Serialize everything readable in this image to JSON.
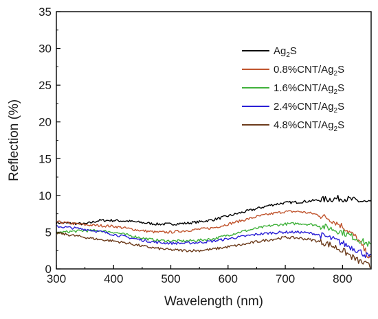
{
  "chart_data": {
    "type": "line",
    "xlabel": "Wavelength (nm)",
    "ylabel": "Reflection (%)",
    "xlim": [
      300,
      850
    ],
    "ylim": [
      0,
      35
    ],
    "x_ticks": [
      "300",
      "400",
      "500",
      "600",
      "700",
      "800"
    ],
    "y_ticks": [
      "0",
      "5",
      "10",
      "15",
      "20",
      "25",
      "30",
      "35"
    ],
    "legend_position": "top-right",
    "x": [
      300,
      325,
      350,
      375,
      400,
      425,
      450,
      475,
      500,
      525,
      550,
      575,
      600,
      625,
      650,
      675,
      700,
      725,
      750,
      775,
      800,
      825,
      850
    ],
    "series": [
      {
        "name": "Ag2S",
        "name_main": "Ag",
        "name_sub": "2",
        "name_tail": "S",
        "color": "#000000",
        "values": [
          6.3,
          6.2,
          6.1,
          6.6,
          6.6,
          6.5,
          6.3,
          6.1,
          6.1,
          6.2,
          6.4,
          6.7,
          7.2,
          7.7,
          8.2,
          8.7,
          9.0,
          9.1,
          9.3,
          9.5,
          9.6,
          9.3,
          8.9
        ]
      },
      {
        "name": "0.8%CNT/Ag2S",
        "name_main": "0.8%CNT/Ag",
        "name_sub": "2",
        "name_tail": "S",
        "color": "#c0542d",
        "values": [
          6.4,
          6.2,
          6.0,
          5.9,
          5.8,
          5.5,
          5.2,
          5.0,
          5.0,
          5.2,
          5.4,
          5.6,
          6.1,
          6.6,
          7.1,
          7.5,
          7.8,
          7.8,
          7.5,
          6.9,
          5.8,
          4.2,
          1.2
        ]
      },
      {
        "name": "1.6%CNT/Ag2S",
        "name_main": "1.6%CNT/Ag",
        "name_sub": "2",
        "name_tail": "S",
        "color": "#3fb13a",
        "values": [
          4.9,
          5.1,
          5.2,
          5.2,
          5.0,
          4.6,
          4.2,
          3.9,
          3.8,
          3.8,
          3.9,
          4.1,
          4.6,
          5.1,
          5.5,
          5.9,
          6.1,
          6.2,
          6.0,
          5.6,
          5.0,
          4.1,
          3.2
        ]
      },
      {
        "name": "2.4%CNT/Ag2S",
        "name_main": "2.4%CNT/Ag",
        "name_sub": "2",
        "name_tail": "S",
        "color": "#2a1fd6",
        "values": [
          5.8,
          5.6,
          5.4,
          5.1,
          4.7,
          4.3,
          3.9,
          3.6,
          3.5,
          3.5,
          3.6,
          3.8,
          4.1,
          4.4,
          4.7,
          4.9,
          5.0,
          5.0,
          4.8,
          4.3,
          3.5,
          2.6,
          1.5
        ]
      },
      {
        "name": "4.8%CNT/Ag2S",
        "name_main": "4.8%CNT/Ag",
        "name_sub": "2",
        "name_tail": "S",
        "color": "#6b3a1a",
        "values": [
          4.9,
          4.6,
          4.3,
          4.0,
          3.8,
          3.5,
          3.1,
          2.8,
          2.6,
          2.5,
          2.5,
          2.7,
          3.0,
          3.3,
          3.7,
          4.0,
          4.3,
          4.2,
          3.9,
          3.4,
          2.5,
          1.2,
          0.3
        ]
      }
    ]
  }
}
